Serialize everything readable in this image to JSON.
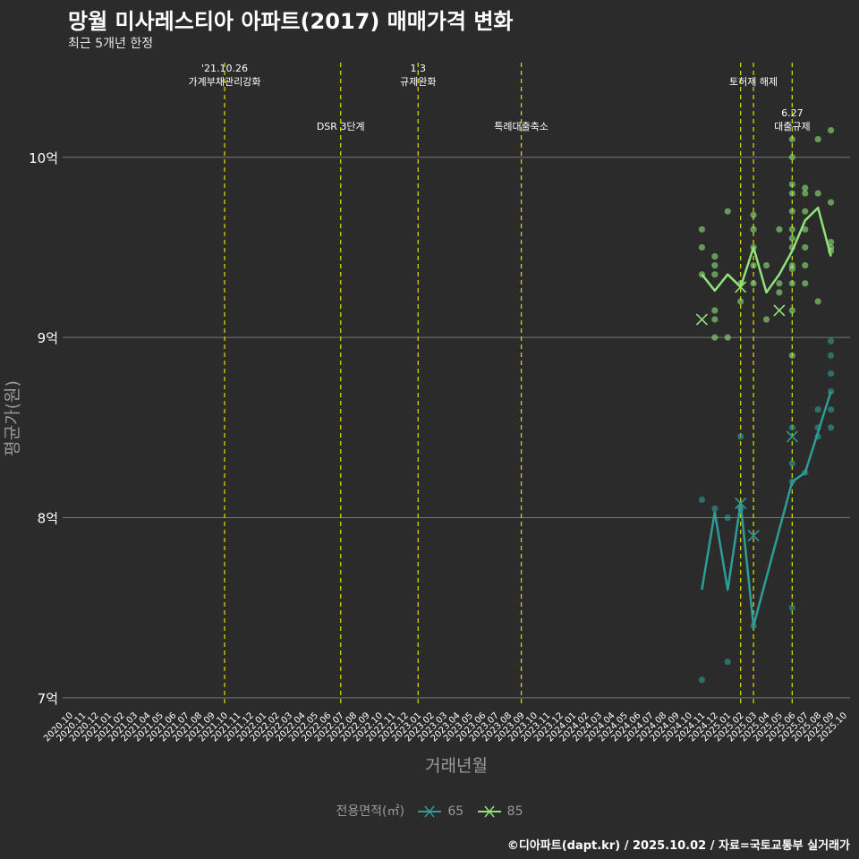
{
  "title": "망월 미사레스티아 아파트(2017) 매매가격 변화",
  "subtitle": "최근 5개년 한정",
  "caption": "©디아파트(dapt.kr) / 2025.10.02 / 자료=국토교통부 실거래가",
  "legend": {
    "title": "전용면적(㎡)",
    "items": [
      "65",
      "85"
    ]
  },
  "colors": {
    "background": "#2b2b2b",
    "grid": "#777777",
    "vline": "#d4d400",
    "s65": "#2e9d96",
    "s85": "#90e27a",
    "text": "#ffffff",
    "axis_title": "#9a9a9a"
  },
  "chart_data": {
    "type": "line",
    "xlabel": "거래년월",
    "ylabel": "평균가(원)",
    "ylim": [
      6.95,
      10.55
    ],
    "y_ticks": [
      {
        "value": 7,
        "label": "7억"
      },
      {
        "value": 8,
        "label": "8억"
      },
      {
        "value": 9,
        "label": "9억"
      },
      {
        "value": 10,
        "label": "10억"
      }
    ],
    "x_categories": [
      "2020.10",
      "2020.11",
      "2020.12",
      "2021.01",
      "2021.02",
      "2021.03",
      "2021.04",
      "2021.05",
      "2021.06",
      "2021.07",
      "2021.08",
      "2021.09",
      "2021.10",
      "2021.11",
      "2021.12",
      "2022.01",
      "2022.02",
      "2022.03",
      "2022.04",
      "2022.05",
      "2022.06",
      "2022.07",
      "2022.08",
      "2022.09",
      "2022.10",
      "2022.11",
      "2022.12",
      "2023.01",
      "2023.02",
      "2023.03",
      "2023.04",
      "2023.05",
      "2023.06",
      "2023.07",
      "2023.08",
      "2023.09",
      "2023.10",
      "2023.11",
      "2023.12",
      "2024.01",
      "2024.02",
      "2024.03",
      "2024.04",
      "2024.05",
      "2024.06",
      "2024.07",
      "2024.08",
      "2024.09",
      "2024.10",
      "2024.11",
      "2024.12",
      "2025.01",
      "2025.02",
      "2025.03",
      "2025.04",
      "2025.05",
      "2025.06",
      "2025.07",
      "2025.08",
      "2025.09",
      "2025.10"
    ],
    "events": [
      {
        "x": "2021.10",
        "lines": [
          "'21.10.26",
          "가계부채관리강화"
        ],
        "row": "top"
      },
      {
        "x": "2022.07",
        "lines": [
          "DSR 3단계"
        ],
        "row": "bottom"
      },
      {
        "x": "2023.01",
        "lines": [
          "1.3",
          "규제완화"
        ],
        "row": "top"
      },
      {
        "x": "2023.09",
        "lines": [
          "특례대출축소"
        ],
        "row": "bottom"
      },
      {
        "x": "2025.02",
        "lines": [],
        "row": "top"
      },
      {
        "x": "2025.03",
        "lines": [
          "토허제 해제"
        ],
        "row": "top"
      },
      {
        "x": "2025.06",
        "lines": [
          "6.27",
          "대출규제"
        ],
        "row": "bottom"
      }
    ],
    "series": [
      {
        "name": "65",
        "line": [
          {
            "x": "2024.11",
            "y": 7.6
          },
          {
            "x": "2024.12",
            "y": 8.03
          },
          {
            "x": "2025.01",
            "y": 7.6
          },
          {
            "x": "2025.02",
            "y": 8.08
          },
          {
            "x": "2025.03",
            "y": 7.4
          },
          {
            "x": "2025.06",
            "y": 8.2
          },
          {
            "x": "2025.07",
            "y": 8.25
          },
          {
            "x": "2025.09",
            "y": 8.7
          }
        ],
        "points": [
          {
            "x": "2024.11",
            "y": 8.1
          },
          {
            "x": "2024.11",
            "y": 7.1
          },
          {
            "x": "2024.12",
            "y": 8.05
          },
          {
            "x": "2025.01",
            "y": 8.0
          },
          {
            "x": "2025.01",
            "y": 7.2
          },
          {
            "x": "2025.02",
            "y": 8.45
          },
          {
            "x": "2025.02",
            "y": 8.05
          },
          {
            "x": "2025.03",
            "y": 7.4
          },
          {
            "x": "2025.06",
            "y": 8.5
          },
          {
            "x": "2025.06",
            "y": 8.3
          },
          {
            "x": "2025.06",
            "y": 8.2
          },
          {
            "x": "2025.06",
            "y": 7.5
          },
          {
            "x": "2025.07",
            "y": 8.25
          },
          {
            "x": "2025.08",
            "y": 8.6
          },
          {
            "x": "2025.08",
            "y": 8.5
          },
          {
            "x": "2025.08",
            "y": 8.45
          },
          {
            "x": "2025.09",
            "y": 8.98
          },
          {
            "x": "2025.09",
            "y": 8.9
          },
          {
            "x": "2025.09",
            "y": 8.8
          },
          {
            "x": "2025.09",
            "y": 8.7
          },
          {
            "x": "2025.09",
            "y": 8.6
          },
          {
            "x": "2025.09",
            "y": 8.5
          }
        ],
        "crosses": [
          {
            "x": "2025.02",
            "y": 8.08
          },
          {
            "x": "2025.03",
            "y": 7.9
          },
          {
            "x": "2025.06",
            "y": 8.45
          }
        ]
      },
      {
        "name": "85",
        "line": [
          {
            "x": "2024.11",
            "y": 9.35
          },
          {
            "x": "2024.12",
            "y": 9.26
          },
          {
            "x": "2025.01",
            "y": 9.35
          },
          {
            "x": "2025.02",
            "y": 9.28
          },
          {
            "x": "2025.03",
            "y": 9.5
          },
          {
            "x": "2025.04",
            "y": 9.25
          },
          {
            "x": "2025.05",
            "y": 9.35
          },
          {
            "x": "2025.06",
            "y": 9.48
          },
          {
            "x": "2025.07",
            "y": 9.65
          },
          {
            "x": "2025.08",
            "y": 9.72
          },
          {
            "x": "2025.09",
            "y": 9.45
          }
        ],
        "points": [
          {
            "x": "2024.11",
            "y": 9.6
          },
          {
            "x": "2024.11",
            "y": 9.5
          },
          {
            "x": "2024.11",
            "y": 9.35
          },
          {
            "x": "2024.12",
            "y": 9.45
          },
          {
            "x": "2024.12",
            "y": 9.4
          },
          {
            "x": "2024.12",
            "y": 9.35
          },
          {
            "x": "2024.12",
            "y": 9.15
          },
          {
            "x": "2024.12",
            "y": 9.1
          },
          {
            "x": "2024.12",
            "y": 9.0
          },
          {
            "x": "2025.01",
            "y": 9.7
          },
          {
            "x": "2025.01",
            "y": 9.0
          },
          {
            "x": "2025.02",
            "y": 9.3
          },
          {
            "x": "2025.02",
            "y": 9.2
          },
          {
            "x": "2025.03",
            "y": 9.68
          },
          {
            "x": "2025.03",
            "y": 9.6
          },
          {
            "x": "2025.03",
            "y": 9.5
          },
          {
            "x": "2025.03",
            "y": 9.4
          },
          {
            "x": "2025.03",
            "y": 9.3
          },
          {
            "x": "2025.04",
            "y": 9.4
          },
          {
            "x": "2025.04",
            "y": 9.1
          },
          {
            "x": "2025.05",
            "y": 9.6
          },
          {
            "x": "2025.05",
            "y": 9.3
          },
          {
            "x": "2025.05",
            "y": 9.25
          },
          {
            "x": "2025.06",
            "y": 10.1
          },
          {
            "x": "2025.06",
            "y": 10.0
          },
          {
            "x": "2025.06",
            "y": 9.85
          },
          {
            "x": "2025.06",
            "y": 9.8
          },
          {
            "x": "2025.06",
            "y": 9.7
          },
          {
            "x": "2025.06",
            "y": 9.6
          },
          {
            "x": "2025.06",
            "y": 9.55
          },
          {
            "x": "2025.06",
            "y": 9.5
          },
          {
            "x": "2025.06",
            "y": 9.4
          },
          {
            "x": "2025.06",
            "y": 9.38
          },
          {
            "x": "2025.06",
            "y": 9.3
          },
          {
            "x": "2025.06",
            "y": 9.15
          },
          {
            "x": "2025.06",
            "y": 8.9
          },
          {
            "x": "2025.07",
            "y": 9.83
          },
          {
            "x": "2025.07",
            "y": 9.8
          },
          {
            "x": "2025.07",
            "y": 9.7
          },
          {
            "x": "2025.07",
            "y": 9.6
          },
          {
            "x": "2025.07",
            "y": 9.5
          },
          {
            "x": "2025.07",
            "y": 9.4
          },
          {
            "x": "2025.07",
            "y": 9.3
          },
          {
            "x": "2025.08",
            "y": 10.1
          },
          {
            "x": "2025.08",
            "y": 9.8
          },
          {
            "x": "2025.08",
            "y": 9.2
          },
          {
            "x": "2025.09",
            "y": 10.15
          },
          {
            "x": "2025.09",
            "y": 9.75
          },
          {
            "x": "2025.09",
            "y": 9.53
          },
          {
            "x": "2025.09",
            "y": 9.5
          },
          {
            "x": "2025.09",
            "y": 9.48
          }
        ],
        "crosses": [
          {
            "x": "2024.11",
            "y": 9.1
          },
          {
            "x": "2025.02",
            "y": 9.28
          },
          {
            "x": "2025.05",
            "y": 9.15
          }
        ]
      }
    ]
  }
}
